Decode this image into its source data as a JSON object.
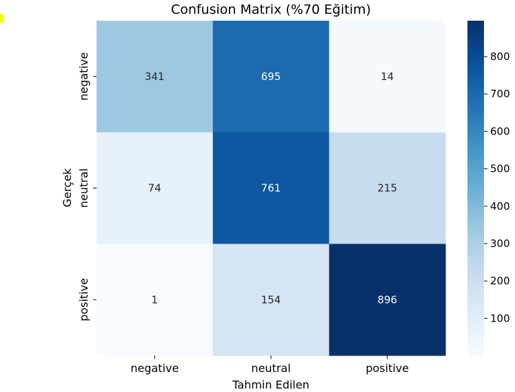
{
  "chart_data": {
    "type": "heatmap",
    "title": "Confusion Matrix (%70 Eğitim)",
    "xlabel": "Tahmin Edilen",
    "ylabel": "Gerçek",
    "x_categories": [
      "negative",
      "neutral",
      "positive"
    ],
    "y_categories": [
      "negative",
      "neutral",
      "positive"
    ],
    "values": [
      [
        341,
        695,
        14
      ],
      [
        74,
        761,
        215
      ],
      [
        1,
        154,
        896
      ]
    ],
    "colormap": "Blues",
    "colorbar": {
      "min": 1,
      "max": 896,
      "ticks": [
        100,
        200,
        300,
        400,
        500,
        600,
        700,
        800
      ]
    },
    "colors": {
      "low": "#f7fbff",
      "high": "#08306b",
      "annotation_light": "#ffffff",
      "annotation_dark": "#262626"
    }
  }
}
